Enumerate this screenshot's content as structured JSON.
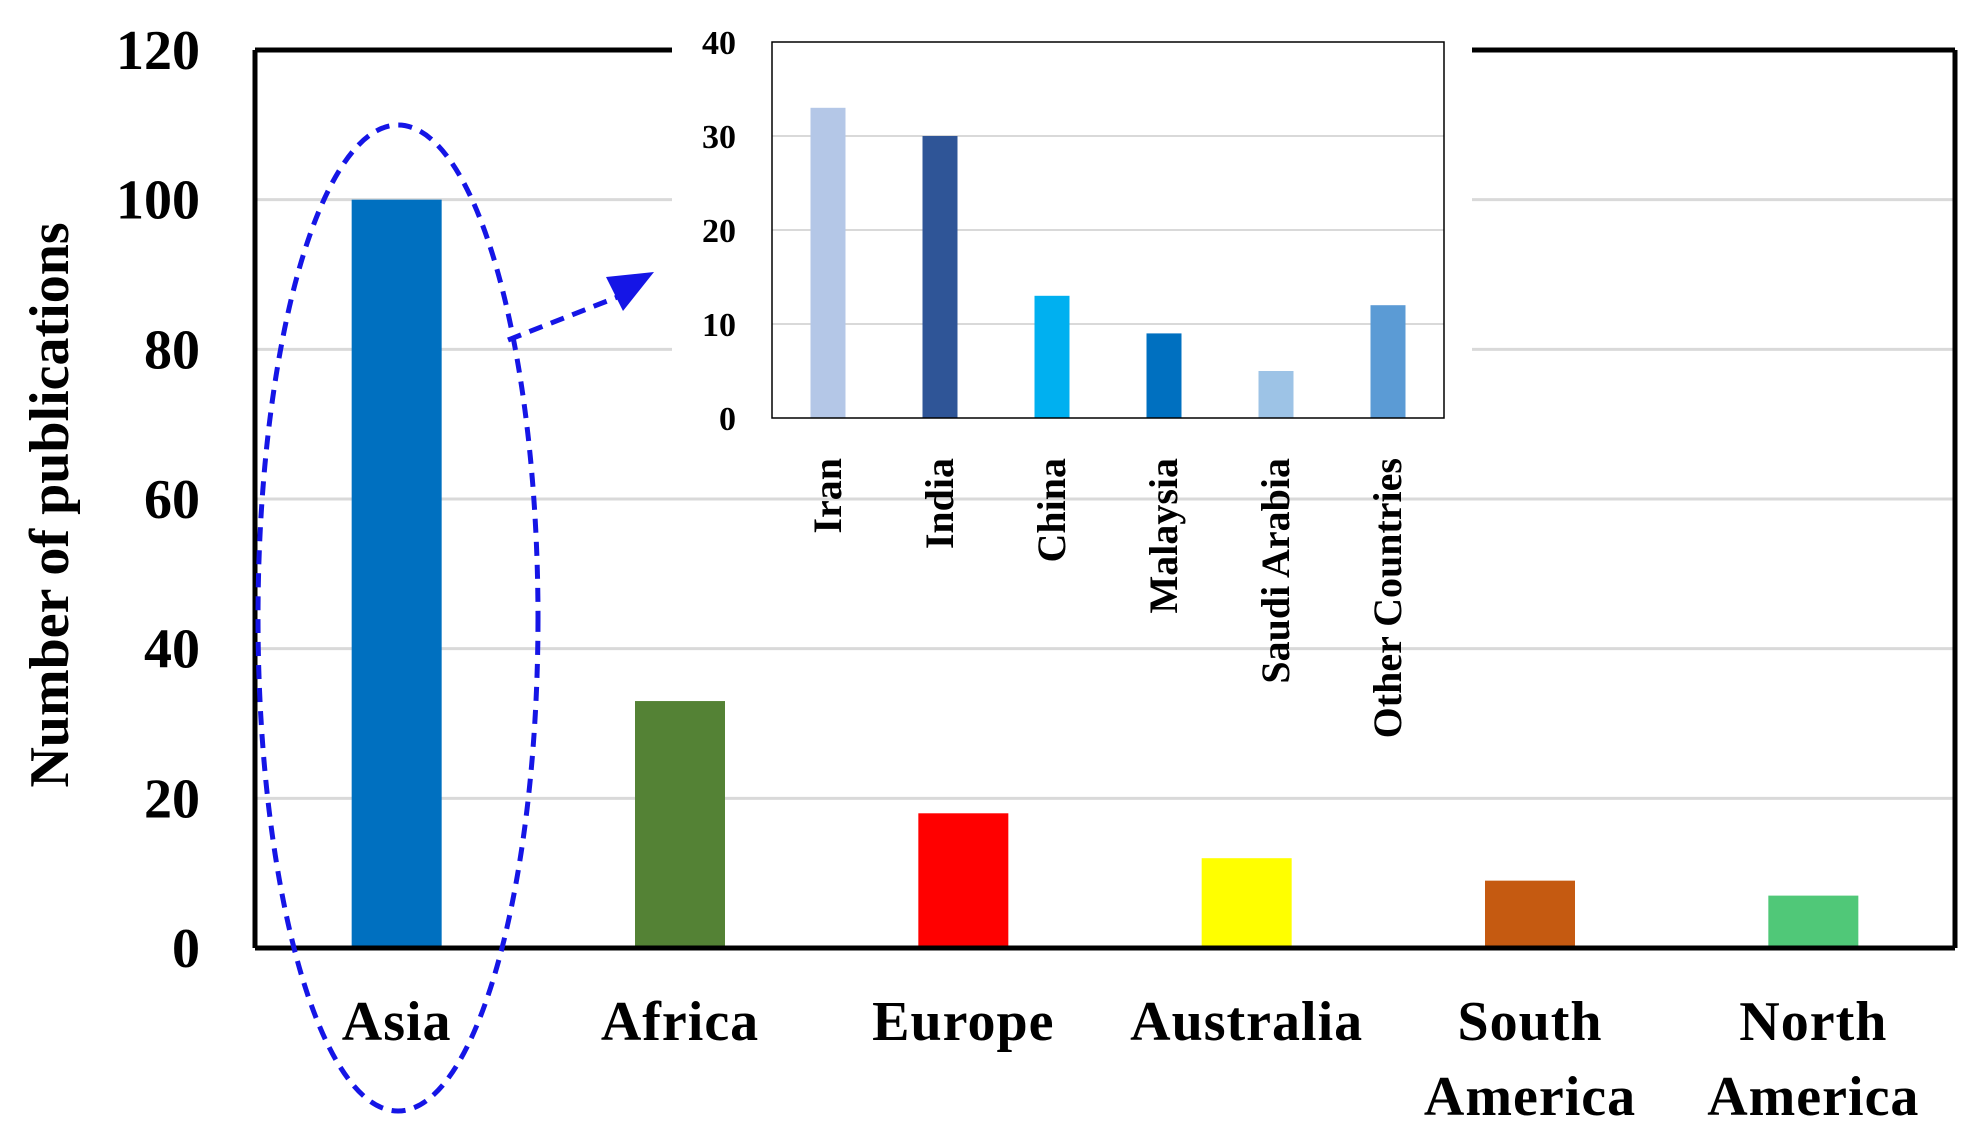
{
  "chart_data": [
    {
      "type": "bar",
      "title": "",
      "xlabel": "",
      "ylabel": "Number of publications",
      "ylim": [
        0,
        120
      ],
      "yticks": [
        "0",
        "20",
        "40",
        "60",
        "80",
        "100",
        "120"
      ],
      "grid": true,
      "categories": [
        [
          "Asia"
        ],
        [
          "Africa"
        ],
        [
          "Europe"
        ],
        [
          "Australia"
        ],
        [
          "South",
          "America"
        ],
        [
          "North",
          "America"
        ]
      ],
      "values": [
        100,
        33,
        18,
        12,
        9,
        7
      ],
      "colors": [
        "#0070C0",
        "#548235",
        "#FF0000",
        "#FFFF00",
        "#C55A11",
        "#50C878"
      ],
      "highlight": {
        "category": "Asia",
        "style": "dashed-ellipse",
        "color": "#1515E6"
      }
    },
    {
      "type": "bar",
      "title": "",
      "xlabel": "",
      "ylabel": "",
      "ylim": [
        0,
        40
      ],
      "yticks": [
        "0",
        "10",
        "20",
        "30",
        "40"
      ],
      "grid": true,
      "categories": [
        "Iran",
        "India",
        "China",
        "Malaysia",
        "Saudi Arabia",
        "Other Countries"
      ],
      "values": [
        33,
        30,
        13,
        9,
        5,
        12
      ],
      "colors": [
        "#B4C7E7",
        "#2F5597",
        "#00B0F0",
        "#0070C0",
        "#9DC3E6",
        "#5B9BD5"
      ]
    }
  ]
}
